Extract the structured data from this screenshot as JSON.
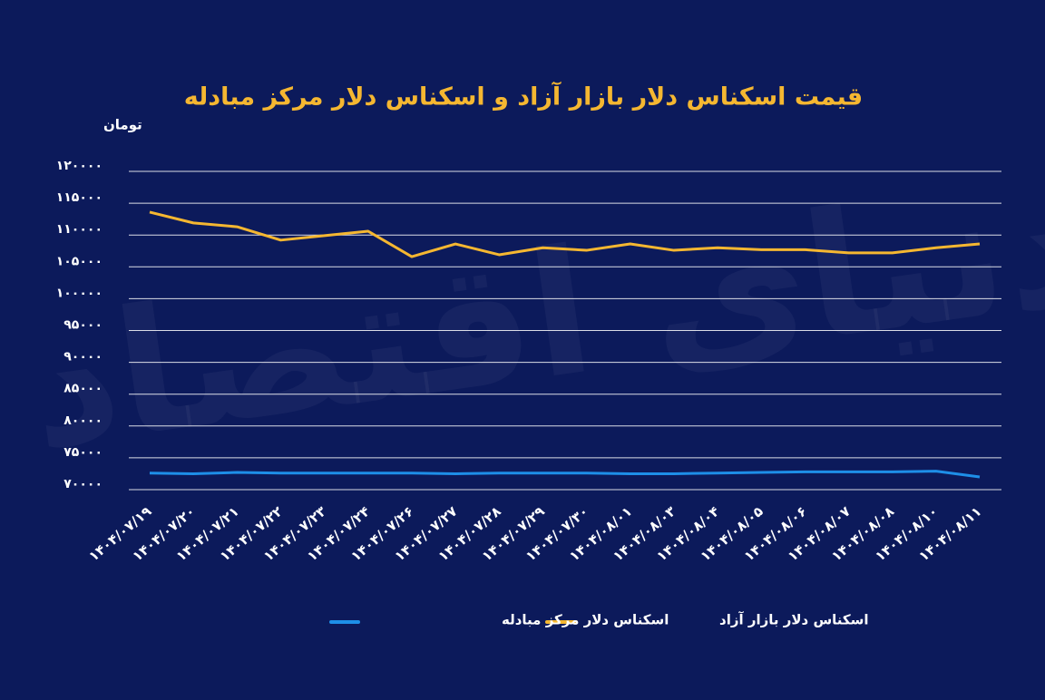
{
  "chart_data": {
    "type": "line",
    "title": "قیمت اسکناس دلار بازار آزاد و اسکناس دلار مرکز مبادله",
    "y_label": "تومان",
    "watermark": "دنیای اقتصاد",
    "categories": [
      "۱۴۰۴/۰۷/۱۹",
      "۱۴۰۴/۰۷/۲۰",
      "۱۴۰۴/۰۷/۲۱",
      "۱۴۰۴/۰۷/۲۲",
      "۱۴۰۴/۰۷/۲۳",
      "۱۴۰۴/۰۷/۲۴",
      "۱۴۰۴/۰۷/۲۶",
      "۱۴۰۴/۰۷/۲۷",
      "۱۴۰۴/۰۷/۲۸",
      "۱۴۰۴/۰۷/۲۹",
      "۱۴۰۴/۰۷/۳۰",
      "۱۴۰۴/۰۸/۰۱",
      "۱۴۰۴/۰۸/۰۳",
      "۱۴۰۴/۰۸/۰۴",
      "۱۴۰۴/۰۸/۰۵",
      "۱۴۰۴/۰۸/۰۶",
      "۱۴۰۴/۰۸/۰۷",
      "۱۴۰۴/۰۸/۰۸",
      "۱۴۰۴/۰۸/۱۰",
      "۱۴۰۴/۰۸/۱۱"
    ],
    "series": [
      {
        "name": "اسکناس دلار بازار آزاد",
        "color": "#f5b731",
        "values": [
          113600,
          111900,
          111300,
          109200,
          109900,
          110600,
          106600,
          108600,
          106900,
          108000,
          107600,
          108600,
          107600,
          108000,
          107700,
          107700,
          107200,
          107200,
          108000,
          108600
        ]
      },
      {
        "name": "اسکناس دلار مرکز مبادله",
        "color": "#1e8fe8",
        "values": [
          72600,
          72500,
          72700,
          72600,
          72600,
          72600,
          72600,
          72500,
          72600,
          72600,
          72600,
          72500,
          72500,
          72600,
          72700,
          72800,
          72800,
          72800,
          72900,
          72000
        ]
      }
    ],
    "ylim": [
      70000,
      120000
    ],
    "yticks": [
      {
        "value": 70000,
        "label": "۷۰۰۰۰"
      },
      {
        "value": 75000,
        "label": "۷۵۰۰۰"
      },
      {
        "value": 80000,
        "label": "۸۰۰۰۰"
      },
      {
        "value": 85000,
        "label": "۸۵۰۰۰"
      },
      {
        "value": 90000,
        "label": "۹۰۰۰۰"
      },
      {
        "value": 95000,
        "label": "۹۵۰۰۰"
      },
      {
        "value": 100000,
        "label": "۱۰۰۰۰۰"
      },
      {
        "value": 105000,
        "label": "۱۰۵۰۰۰"
      },
      {
        "value": 110000,
        "label": "۱۱۰۰۰۰"
      },
      {
        "value": 115000,
        "label": "۱۱۵۰۰۰"
      },
      {
        "value": 120000,
        "label": "۱۲۰۰۰۰"
      }
    ],
    "grid": true
  }
}
